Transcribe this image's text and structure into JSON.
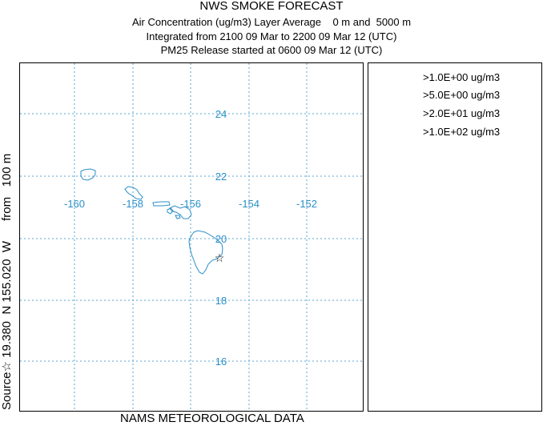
{
  "header": {
    "title": "NWS SMOKE FORECAST",
    "line1": "Air Concentration (ug/m3) Layer Average    0 m and  5000 m",
    "line2": "Integrated from 2100 09 Mar to 2200 09 Mar 12 (UTC)",
    "line3": "PM25 Release started at 0600 09 Mar 12 (UTC)"
  },
  "side_label": "Source☆ 19.380  N 155.020  W      from   100 m",
  "footer": "NAMS METEOROLOGICAL DATA",
  "legend": [
    ">1.0E+00 ug/m3",
    ">5.0E+00 ug/m3",
    ">2.0E+01 ug/m3",
    ">1.0E+02 ug/m3"
  ],
  "map": {
    "longitude_labels": [
      "-160",
      "-158",
      "-156",
      "-154",
      "-152"
    ],
    "latitude_labels": [
      "24",
      "22",
      "20",
      "18",
      "16"
    ],
    "source_symbol": "☆",
    "colors": {
      "grid": "#5aa5d6",
      "coast": "#2a8fc8",
      "label": "#2a8fc8"
    }
  }
}
